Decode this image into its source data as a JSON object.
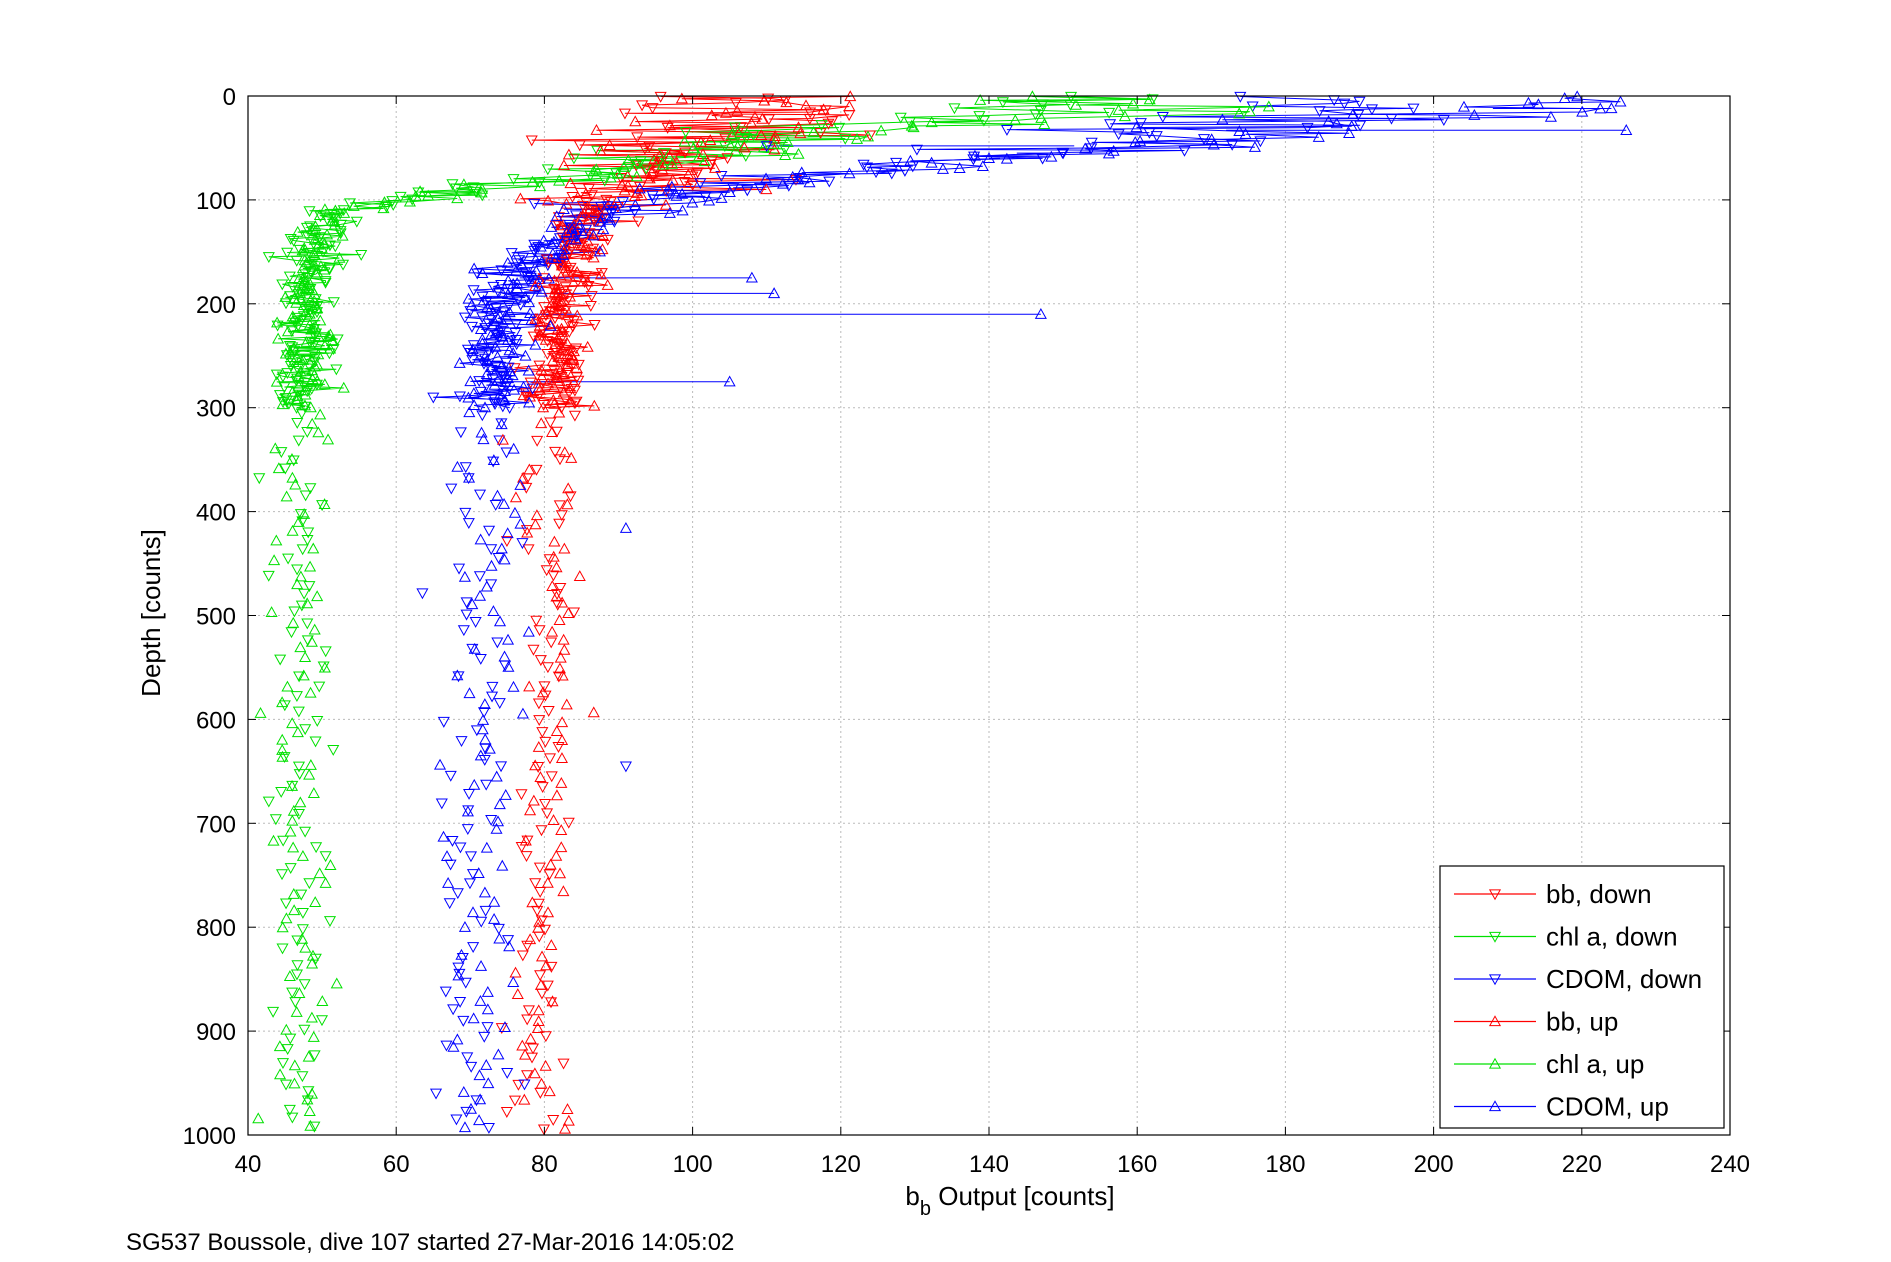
{
  "chart_data": {
    "type": "scatter",
    "xlabel": "b",
    "xlabel_sub": "b",
    "xlabel_rest": " Output [counts]",
    "ylabel": "Depth [counts]",
    "xlim": [
      40,
      240
    ],
    "ylim": [
      0,
      1000
    ],
    "y_reversed": true,
    "grid": true,
    "legend_position": "bottom-right",
    "xticks": [
      "40",
      "60",
      "80",
      "100",
      "120",
      "140",
      "160",
      "180",
      "200",
      "220",
      "240"
    ],
    "yticks": [
      "0",
      "100",
      "200",
      "300",
      "400",
      "500",
      "600",
      "700",
      "800",
      "900",
      "1000"
    ],
    "caption": "SG537 Boussole, dive 107 started 27-Mar-2016 14:05:02",
    "series": [
      {
        "name": "bb, down",
        "color": "#ff0000",
        "marker": "triangle-down",
        "profile": [
          [
            105,
            0
          ],
          [
            109,
            15
          ],
          [
            107,
            30
          ],
          [
            101,
            50
          ],
          [
            97,
            70
          ],
          [
            92,
            90
          ],
          [
            87,
            110
          ],
          [
            85,
            130
          ],
          [
            84,
            150
          ],
          [
            83,
            170
          ],
          [
            82,
            200
          ],
          [
            82,
            240
          ],
          [
            81,
            290
          ],
          [
            81,
            340
          ],
          [
            80,
            400
          ],
          [
            80,
            500
          ],
          [
            80,
            600
          ],
          [
            80,
            700
          ],
          [
            79,
            800
          ],
          [
            79,
            900
          ],
          [
            79,
            1000
          ]
        ],
        "jitter": 2.2,
        "count": 230,
        "seed": 11
      },
      {
        "name": "chl a, down",
        "color": "#00e000",
        "marker": "triangle-down",
        "profile": [
          [
            140,
            0
          ],
          [
            150,
            15
          ],
          [
            120,
            30
          ],
          [
            100,
            50
          ],
          [
            85,
            75
          ],
          [
            70,
            90
          ],
          [
            58,
            100
          ],
          [
            52,
            110
          ],
          [
            50,
            130
          ],
          [
            49,
            150
          ],
          [
            48,
            170
          ],
          [
            47,
            200
          ],
          [
            47,
            250
          ],
          [
            47,
            300
          ],
          [
            47,
            400
          ],
          [
            47,
            500
          ],
          [
            47,
            600
          ],
          [
            47,
            700
          ],
          [
            47,
            800
          ],
          [
            47,
            900
          ],
          [
            47,
            1000
          ]
        ],
        "jitter": 2.0,
        "count": 230,
        "seed": 22
      },
      {
        "name": "CDOM, down",
        "color": "#0000ff",
        "marker": "triangle-down",
        "profile": [
          [
            190,
            0
          ],
          [
            195,
            15
          ],
          [
            165,
            30
          ],
          [
            150,
            50
          ],
          [
            125,
            70
          ],
          [
            100,
            90
          ],
          [
            90,
            110
          ],
          [
            83,
            130
          ],
          [
            79,
            150
          ],
          [
            76,
            170
          ],
          [
            74,
            200
          ],
          [
            73,
            250
          ],
          [
            73,
            300
          ],
          [
            72,
            400
          ],
          [
            72,
            500
          ],
          [
            72,
            600
          ],
          [
            71,
            700
          ],
          [
            71,
            800
          ],
          [
            70,
            900
          ],
          [
            69,
            1000
          ]
        ],
        "jitter": 2.6,
        "count": 230,
        "seed": 33
      },
      {
        "name": "bb, up",
        "color": "#ff0000",
        "marker": "triangle-up",
        "profile": [
          [
            106,
            0
          ],
          [
            110,
            15
          ],
          [
            105,
            30
          ],
          [
            100,
            50
          ],
          [
            96,
            70
          ],
          [
            91,
            90
          ],
          [
            87,
            110
          ],
          [
            85,
            130
          ],
          [
            84,
            150
          ],
          [
            83,
            170
          ],
          [
            82,
            200
          ],
          [
            82,
            240
          ],
          [
            81,
            290
          ],
          [
            81,
            340
          ],
          [
            81,
            400
          ],
          [
            81,
            500
          ],
          [
            81,
            600
          ],
          [
            81,
            700
          ],
          [
            80,
            800
          ],
          [
            80,
            900
          ],
          [
            80,
            1000
          ]
        ],
        "jitter": 2.2,
        "count": 230,
        "seed": 44
      },
      {
        "name": "chl a, up",
        "color": "#00e000",
        "marker": "triangle-up",
        "profile": [
          [
            160,
            0
          ],
          [
            170,
            15
          ],
          [
            130,
            30
          ],
          [
            105,
            50
          ],
          [
            88,
            75
          ],
          [
            72,
            90
          ],
          [
            60,
            100
          ],
          [
            53,
            110
          ],
          [
            50,
            130
          ],
          [
            49,
            150
          ],
          [
            48,
            170
          ],
          [
            48,
            200
          ],
          [
            48,
            250
          ],
          [
            48,
            300
          ],
          [
            47,
            400
          ],
          [
            47,
            500
          ],
          [
            47,
            600
          ],
          [
            47,
            700
          ],
          [
            47,
            800
          ],
          [
            47,
            900
          ],
          [
            47,
            1000
          ]
        ],
        "jitter": 2.0,
        "count": 230,
        "seed": 55
      },
      {
        "name": "CDOM, up",
        "color": "#0000ff",
        "marker": "triangle-up",
        "profile": [
          [
            200,
            0
          ],
          [
            210,
            15
          ],
          [
            175,
            30
          ],
          [
            155,
            50
          ],
          [
            128,
            70
          ],
          [
            103,
            90
          ],
          [
            92,
            110
          ],
          [
            85,
            130
          ],
          [
            80,
            150
          ],
          [
            77,
            170
          ],
          [
            75,
            200
          ],
          [
            74,
            250
          ],
          [
            74,
            300
          ],
          [
            73,
            400
          ],
          [
            73,
            500
          ],
          [
            72,
            600
          ],
          [
            72,
            700
          ],
          [
            72,
            800
          ],
          [
            71,
            900
          ],
          [
            70,
            1000
          ]
        ],
        "jitter": 2.6,
        "count": 230,
        "seed": 66
      }
    ],
    "outliers": [
      {
        "series": "CDOM, up",
        "points": [
          [
            147,
            210
          ],
          [
            105,
            275
          ],
          [
            108,
            175
          ],
          [
            111,
            190
          ],
          [
            226,
            33
          ],
          [
            224,
            12
          ],
          [
            91,
            416
          ],
          [
            140,
            60
          ]
        ]
      },
      {
        "series": "CDOM, down",
        "points": [
          [
            91,
            645
          ],
          [
            110,
            48
          ],
          [
            150,
            55
          ]
        ]
      }
    ]
  }
}
